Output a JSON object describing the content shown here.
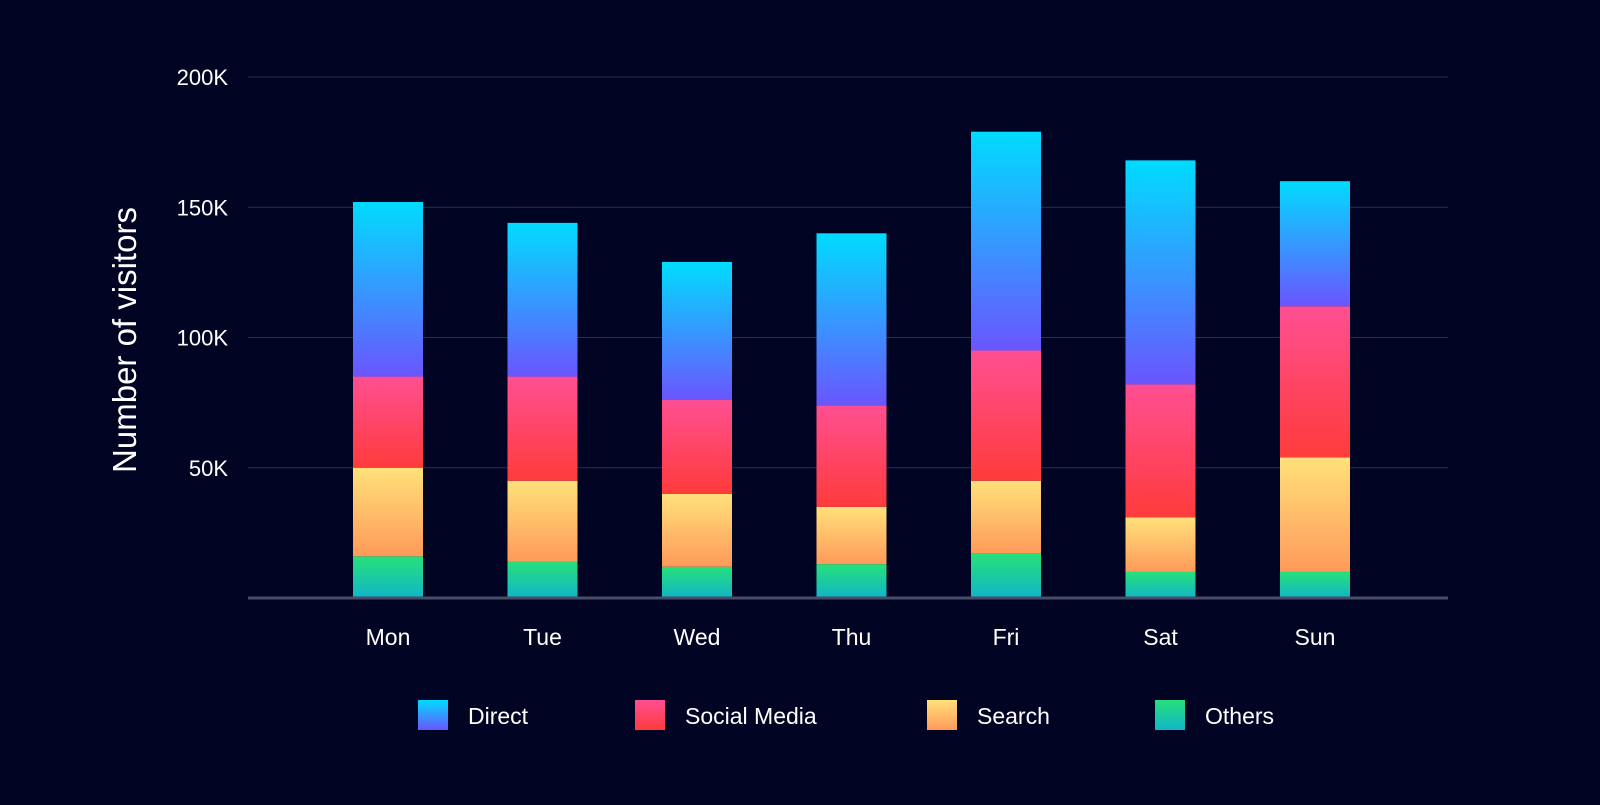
{
  "chart_data": {
    "type": "bar",
    "stacked": true,
    "title": "",
    "xlabel": "",
    "ylabel": "Number of visitors",
    "ylim": [
      0,
      200000
    ],
    "yticks": [
      50000,
      100000,
      150000,
      200000
    ],
    "ytick_labels": [
      "50K",
      "100K",
      "150K",
      "200K"
    ],
    "grid": true,
    "legend_position": "bottom",
    "categories": [
      "Mon",
      "Tue",
      "Wed",
      "Thu",
      "Fri",
      "Sat",
      "Sun"
    ],
    "series": [
      {
        "name": "Others",
        "values": [
          16000,
          14000,
          12000,
          13000,
          17000,
          10000,
          10000
        ],
        "color_top": "#27e07a",
        "color_bottom": "#10b6c8"
      },
      {
        "name": "Search",
        "values": [
          34000,
          31000,
          28000,
          22000,
          28000,
          21000,
          44000
        ],
        "color_top": "#ffe17a",
        "color_bottom": "#ff9a5a"
      },
      {
        "name": "Social Media",
        "values": [
          35000,
          40000,
          36000,
          39000,
          50000,
          51000,
          58000
        ],
        "color_top": "#ff4f92",
        "color_bottom": "#ff3b3b"
      },
      {
        "name": "Direct",
        "values": [
          67000,
          59000,
          53000,
          66000,
          84000,
          86000,
          48000
        ],
        "color_top": "#00dcff",
        "color_bottom": "#6a55ff"
      }
    ],
    "legend_order": [
      "Direct",
      "Social Media",
      "Search",
      "Others"
    ]
  },
  "colors": {
    "background": "#020424",
    "grid": "#2a2d4e",
    "axis": "#4a4d68",
    "text": "#ffffff"
  }
}
